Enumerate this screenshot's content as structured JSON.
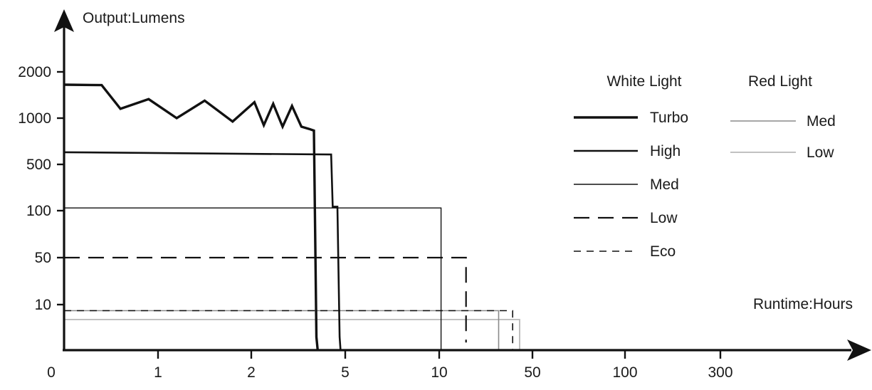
{
  "chart_data": {
    "type": "line",
    "ylabel": "Output:Lumens",
    "xlabel": "Runtime:Hours",
    "y_scale": "categorical-log",
    "x_scale": "categorical",
    "y_ticks": [
      "10",
      "50",
      "100",
      "500",
      "1000",
      "2000"
    ],
    "x_ticks": [
      "0",
      "1",
      "2",
      "5",
      "10",
      "50",
      "100",
      "300"
    ],
    "legend": {
      "placement": "top-right",
      "groups": [
        {
          "title": "White Light",
          "entries": [
            {
              "label": "Turbo",
              "style": "thick-solid"
            },
            {
              "label": "High",
              "style": "medium-solid"
            },
            {
              "label": "Med",
              "style": "thin-solid"
            },
            {
              "label": "Low",
              "style": "long-dash"
            },
            {
              "label": "Eco",
              "style": "short-dash"
            }
          ]
        },
        {
          "title": "Red Light",
          "entries": [
            {
              "label": "Med",
              "style": "gray-solid"
            },
            {
              "label": "Low",
              "style": "light-gray-solid"
            }
          ]
        }
      ]
    },
    "series": [
      {
        "group": "White Light",
        "name": "Turbo",
        "color": "#111111",
        "width": 3.4,
        "dash": "",
        "points": [
          [
            0,
            1650
          ],
          [
            0.4,
            1640
          ],
          [
            0.6,
            1150
          ],
          [
            0.9,
            1330
          ],
          [
            1.2,
            1000
          ],
          [
            1.5,
            1300
          ],
          [
            1.8,
            950
          ],
          [
            2.1,
            1270
          ],
          [
            2.4,
            900
          ],
          [
            2.7,
            1240
          ],
          [
            3.0,
            880
          ],
          [
            3.3,
            1200
          ],
          [
            3.6,
            880
          ],
          [
            3.85,
            850
          ],
          [
            4.0,
            830
          ],
          [
            4.08,
            1
          ],
          [
            4.12,
            0
          ]
        ]
      },
      {
        "group": "White Light",
        "name": "High",
        "color": "#111111",
        "width": 2.6,
        "dash": "",
        "points": [
          [
            0,
            600
          ],
          [
            4.55,
            580
          ],
          [
            4.6,
            115
          ],
          [
            4.75,
            115
          ],
          [
            4.82,
            1
          ],
          [
            4.85,
            0
          ]
        ]
      },
      {
        "group": "White Light",
        "name": "Med",
        "color": "#111111",
        "width": 1.4,
        "dash": "",
        "points": [
          [
            0,
            110
          ],
          [
            10.8,
            110
          ],
          [
            10.8,
            0
          ]
        ]
      },
      {
        "group": "White Light",
        "name": "Low",
        "color": "#111111",
        "width": 2.2,
        "dash": "22,12",
        "points": [
          [
            0,
            50
          ],
          [
            21.5,
            50
          ],
          [
            21.5,
            0.5
          ]
        ]
      },
      {
        "group": "White Light",
        "name": "Eco",
        "color": "#111111",
        "width": 1.6,
        "dash": "10,8",
        "points": [
          [
            0,
            7
          ],
          [
            41.5,
            7
          ],
          [
            41.5,
            0
          ]
        ]
      },
      {
        "group": "Red Light",
        "name": "Med",
        "color": "#8a8a8a",
        "width": 1.6,
        "dash": "",
        "points": [
          [
            0,
            7
          ],
          [
            35.5,
            7
          ],
          [
            35.5,
            0
          ]
        ]
      },
      {
        "group": "Red Light",
        "name": "Low",
        "color": "#b8b8b8",
        "width": 1.8,
        "dash": "",
        "points": [
          [
            0,
            4
          ],
          [
            44.5,
            4
          ],
          [
            44.5,
            0
          ]
        ]
      }
    ]
  }
}
